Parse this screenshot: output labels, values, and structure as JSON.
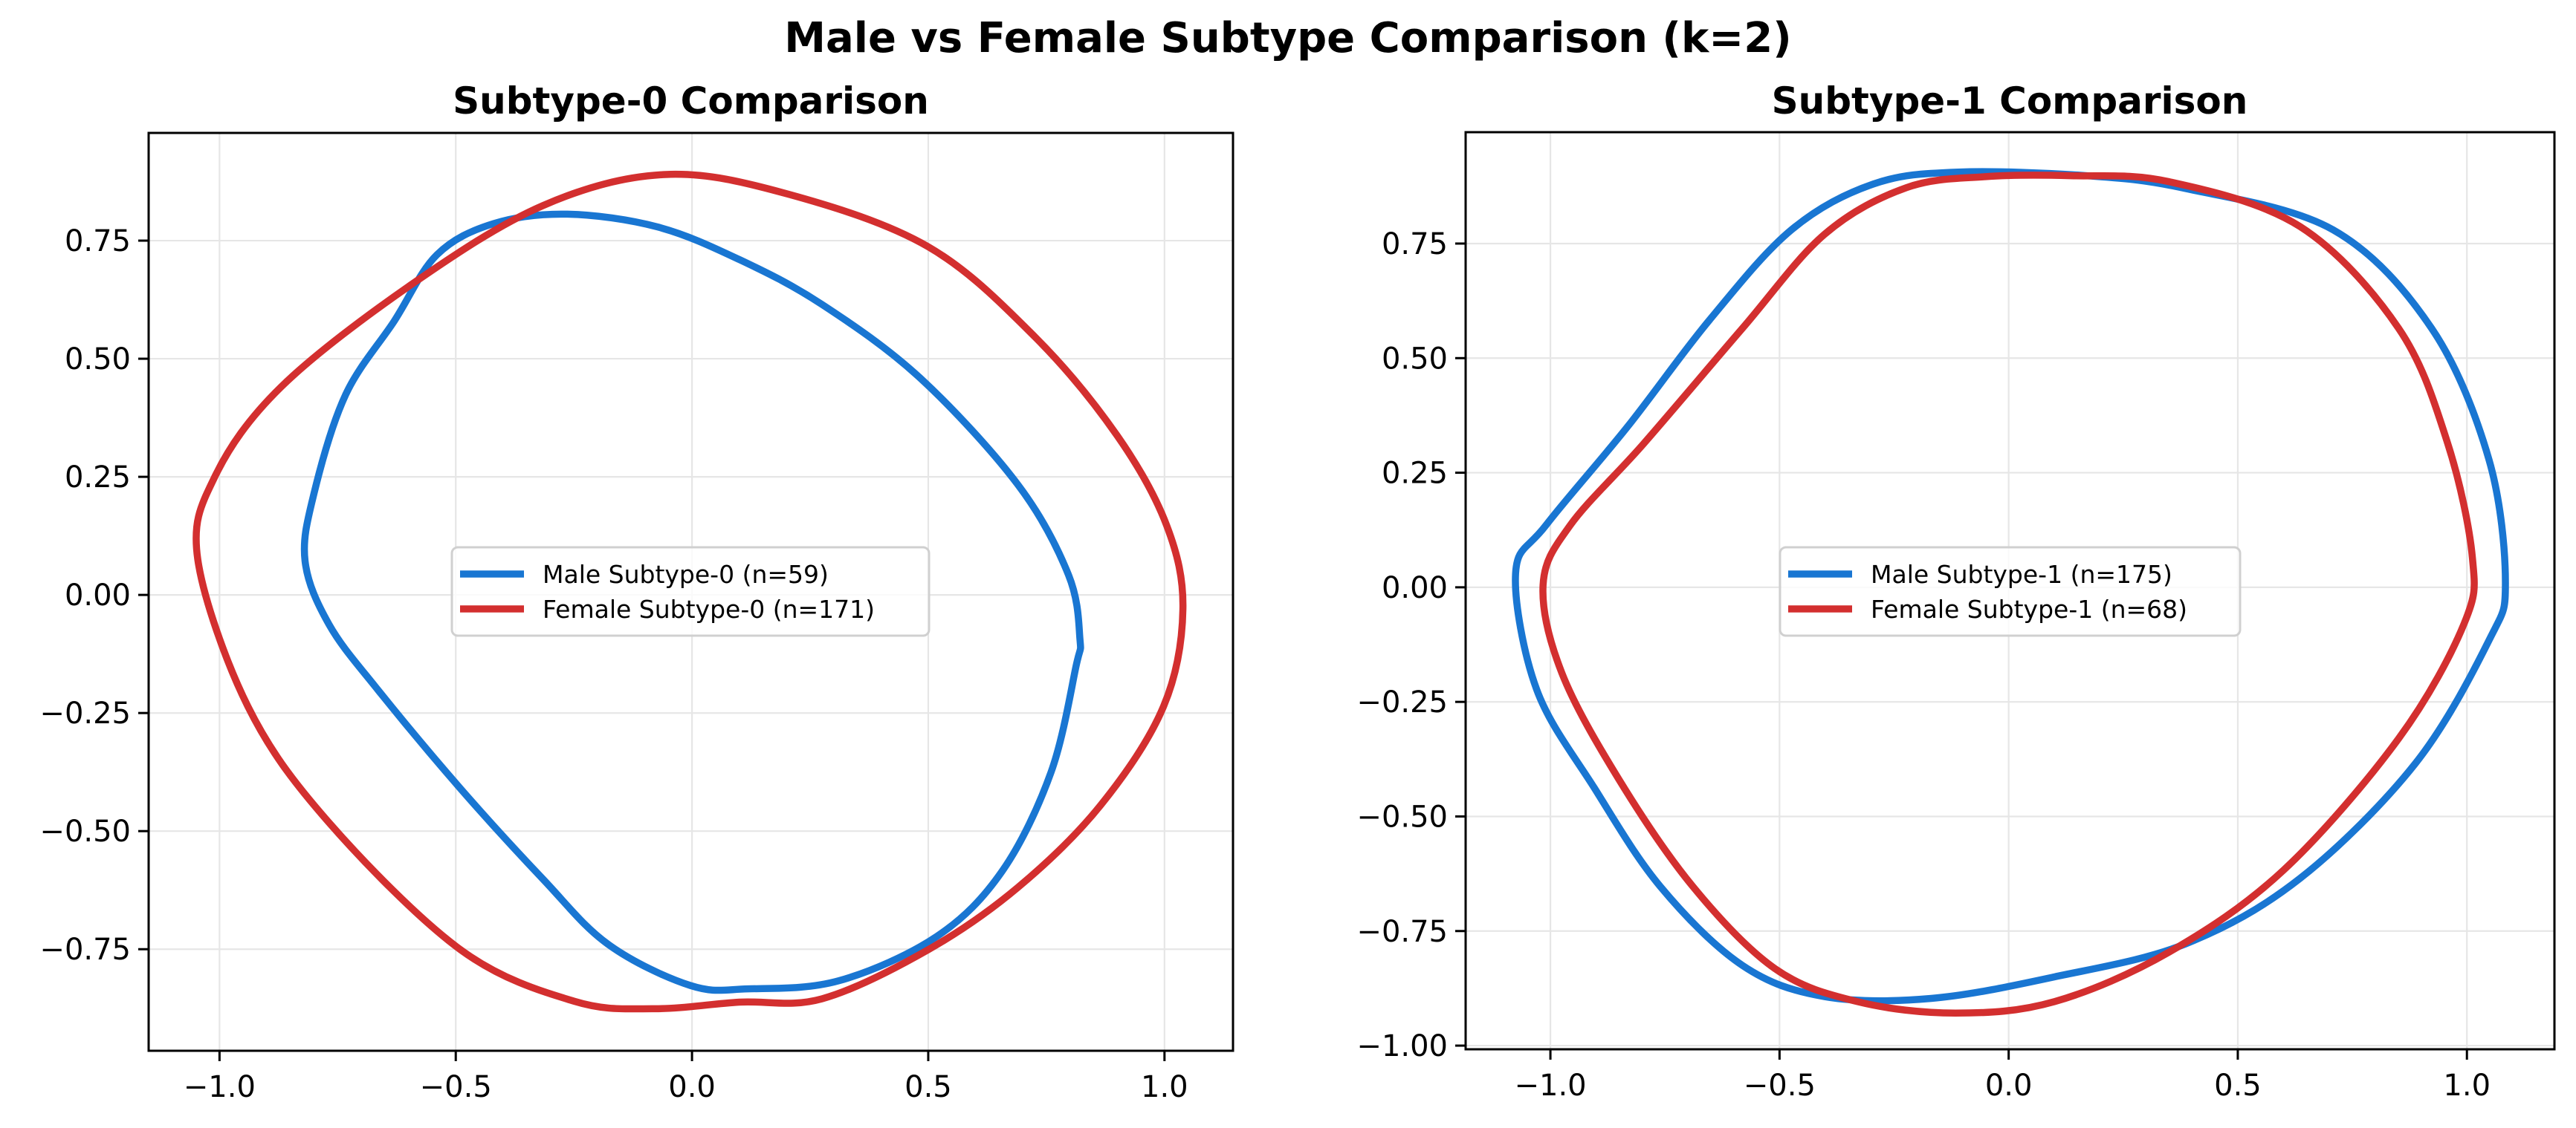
{
  "figure": {
    "suptitle": "Male vs Female Subtype Comparison (k=2)"
  },
  "colors": {
    "male": "#1976D2",
    "female": "#D32F2F",
    "grid": "#e6e6e6"
  },
  "chart_data": [
    {
      "type": "line",
      "title": "Subtype-0 Comparison",
      "xlabel": "",
      "ylabel": "",
      "xlim": [
        -1.15,
        1.145
      ],
      "ylim": [
        -0.965,
        0.978
      ],
      "xticks": [
        -1.0,
        -0.5,
        0.0,
        0.5,
        1.0
      ],
      "xtick_labels": [
        "−1.0",
        "−0.5",
        "0.0",
        "0.5",
        "1.0"
      ],
      "yticks": [
        -0.75,
        -0.5,
        -0.25,
        0.0,
        0.25,
        0.5,
        0.75
      ],
      "ytick_labels": [
        "−0.75",
        "−0.50",
        "−0.25",
        "0.00",
        "0.25",
        "0.50",
        "0.75"
      ],
      "grid": true,
      "legend_position": "center",
      "closed_curves": true,
      "series": [
        {
          "name": "Male Subtype-0 (n=59)",
          "color": "#1976D2",
          "points": [
            [
              -0.819,
              0.072
            ],
            [
              -0.8,
              0.215
            ],
            [
              -0.733,
              0.424
            ],
            [
              -0.63,
              0.58
            ],
            [
              -0.54,
              0.72
            ],
            [
              -0.42,
              0.786
            ],
            [
              -0.264,
              0.806
            ],
            [
              -0.073,
              0.779
            ],
            [
              0.1,
              0.71
            ],
            [
              0.275,
              0.615
            ],
            [
              0.483,
              0.459
            ],
            [
              0.69,
              0.233
            ],
            [
              0.797,
              0.042
            ],
            [
              0.821,
              -0.093
            ],
            [
              0.813,
              -0.15
            ],
            [
              0.76,
              -0.375
            ],
            [
              0.657,
              -0.584
            ],
            [
              0.518,
              -0.723
            ],
            [
              0.31,
              -0.817
            ],
            [
              0.118,
              -0.834
            ],
            [
              -0.003,
              -0.827
            ],
            [
              -0.177,
              -0.74
            ],
            [
              -0.316,
              -0.601
            ],
            [
              -0.49,
              -0.41
            ],
            [
              -0.664,
              -0.202
            ],
            [
              -0.768,
              -0.063
            ]
          ]
        },
        {
          "name": "Female Subtype-0 (n=171)",
          "color": "#D32F2F",
          "points": [
            [
              -0.056,
              0.89
            ],
            [
              0.205,
              0.848
            ],
            [
              0.5,
              0.737
            ],
            [
              0.726,
              0.546
            ],
            [
              0.9,
              0.337
            ],
            [
              1.005,
              0.146
            ],
            [
              1.039,
              -0.03
            ],
            [
              0.998,
              -0.236
            ],
            [
              0.865,
              -0.445
            ],
            [
              0.69,
              -0.619
            ],
            [
              0.5,
              -0.751
            ],
            [
              0.275,
              -0.855
            ],
            [
              0.1,
              -0.862
            ],
            [
              -0.08,
              -0.876
            ],
            [
              -0.25,
              -0.86
            ],
            [
              -0.49,
              -0.751
            ],
            [
              -0.77,
              -0.48
            ],
            [
              -0.94,
              -0.236
            ],
            [
              -1.046,
              0.075
            ],
            [
              -1.01,
              0.25
            ],
            [
              -0.87,
              0.44
            ],
            [
              -0.594,
              0.657
            ],
            [
              -0.316,
              0.824
            ]
          ]
        }
      ]
    },
    {
      "type": "line",
      "title": "Subtype-1 Comparison",
      "xlabel": "",
      "ylabel": "",
      "xlim": [
        -1.185,
        1.191
      ],
      "ylim": [
        -1.008,
        0.993
      ],
      "xticks": [
        -1.0,
        -0.5,
        0.0,
        0.5,
        1.0
      ],
      "xtick_labels": [
        "−1.0",
        "−0.5",
        "0.0",
        "0.5",
        "1.0"
      ],
      "yticks": [
        -1.0,
        -0.75,
        -0.5,
        -0.25,
        0.0,
        0.25,
        0.5,
        0.75
      ],
      "ytick_labels": [
        "−1.00",
        "−0.75",
        "−0.50",
        "−0.25",
        "0.00",
        "0.25",
        "0.50",
        "0.75"
      ],
      "grid": true,
      "legend_position": "center",
      "closed_curves": true,
      "series": [
        {
          "name": "Male Subtype-1 (n=175)",
          "color": "#1976D2",
          "points": [
            [
              -0.11,
              0.906
            ],
            [
              -0.295,
              0.88
            ],
            [
              -0.474,
              0.78
            ],
            [
              -0.653,
              0.583
            ],
            [
              -0.832,
              0.35
            ],
            [
              -1.01,
              0.135
            ],
            [
              -1.076,
              0.03
            ],
            [
              -1.03,
              -0.223
            ],
            [
              -0.904,
              -0.438
            ],
            [
              -0.76,
              -0.653
            ],
            [
              -0.581,
              -0.825
            ],
            [
              -0.402,
              -0.893
            ],
            [
              -0.169,
              -0.897
            ],
            [
              0.1,
              -0.85
            ],
            [
              0.386,
              -0.778
            ],
            [
              0.636,
              -0.635
            ],
            [
              0.887,
              -0.385
            ],
            [
              1.048,
              -0.116
            ],
            [
              1.084,
              0.01
            ],
            [
              1.048,
              0.279
            ],
            [
              0.923,
              0.565
            ],
            [
              0.708,
              0.78
            ],
            [
              0.386,
              0.87
            ],
            [
              0.17,
              0.898
            ]
          ]
        },
        {
          "name": "Female Subtype-1 (n=68)",
          "color": "#D32F2F",
          "points": [
            [
              -0.05,
              0.896
            ],
            [
              -0.223,
              0.872
            ],
            [
              -0.402,
              0.77
            ],
            [
              -0.581,
              0.565
            ],
            [
              -0.796,
              0.314
            ],
            [
              -0.957,
              0.135
            ],
            [
              -1.016,
              0.005
            ],
            [
              -0.975,
              -0.187
            ],
            [
              -0.85,
              -0.42
            ],
            [
              -0.689,
              -0.653
            ],
            [
              -0.51,
              -0.832
            ],
            [
              -0.33,
              -0.904
            ],
            [
              -0.116,
              -0.929
            ],
            [
              0.1,
              -0.904
            ],
            [
              0.35,
              -0.796
            ],
            [
              0.6,
              -0.617
            ],
            [
              0.851,
              -0.33
            ],
            [
              0.994,
              -0.079
            ],
            [
              1.012,
              0.064
            ],
            [
              0.958,
              0.314
            ],
            [
              0.851,
              0.565
            ],
            [
              0.636,
              0.787
            ],
            [
              0.35,
              0.885
            ],
            [
              0.135,
              0.898
            ]
          ]
        }
      ]
    }
  ]
}
